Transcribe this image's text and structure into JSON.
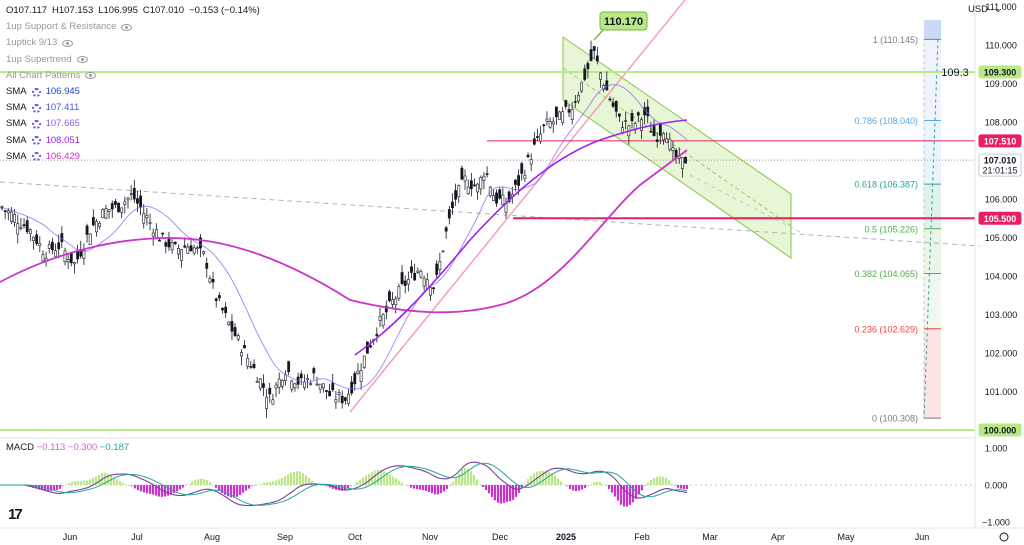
{
  "ohlc": {
    "open": "O107.117",
    "high": "H107.153",
    "low": "L106.995",
    "close": "C107.010",
    "change": "−0.153 (−0.14%)"
  },
  "indicators": [
    {
      "label": "1up Support & Resistance",
      "icon": "eye-off-icon"
    },
    {
      "label": "1uptick 9/13",
      "icon": "eye-off-icon"
    },
    {
      "label": "1up Supertrend",
      "icon": "eye-off-icon"
    },
    {
      "label": "All Chart Patterns",
      "icon": "eye-off-icon"
    }
  ],
  "sma": [
    {
      "label": "SMA",
      "value": "106.945",
      "color": "#1e3fd6"
    },
    {
      "label": "SMA",
      "value": "107.411",
      "color": "#3d58e0"
    },
    {
      "label": "SMA",
      "value": "107.665",
      "color": "#8b5cf6"
    },
    {
      "label": "SMA",
      "value": "108.051",
      "color": "#a020f0"
    },
    {
      "label": "SMA",
      "value": "106.429",
      "color": "#cc33cc"
    }
  ],
  "currency": "USD",
  "price_axis": {
    "ticks": [
      "111.000",
      "110.000",
      "109.000",
      "108.000",
      "107.000",
      "106.000",
      "105.000",
      "104.000",
      "103.000",
      "102.000",
      "101.000"
    ],
    "badges": [
      {
        "label": "109.300",
        "bg": "#b9e986",
        "fg": "#131722"
      },
      {
        "label": "107.510",
        "bg": "#e91e63",
        "fg": "#ffffff"
      },
      {
        "label": "107.010",
        "bg": "#ffffff",
        "fg": "#131722",
        "sub": "21:01:15"
      },
      {
        "label": "105.500",
        "bg": "#e91e63",
        "fg": "#ffffff"
      },
      {
        "label": "100.000",
        "bg": "#b9e986",
        "fg": "#131722"
      }
    ]
  },
  "macd_axis": [
    "1.000",
    "0.000",
    "−1.000"
  ],
  "time_axis": [
    "Jun",
    "Jul",
    "Aug",
    "Sep",
    "Oct",
    "Nov",
    "Dec",
    "2025",
    "Feb",
    "Mar",
    "Apr",
    "May",
    "Jun"
  ],
  "annotations": {
    "peak_callout": "110.170",
    "hline_label": "109.3"
  },
  "macd_legend": {
    "name": "MACD",
    "v1": "−0.113",
    "v2": "−0.300",
    "v3": "−0.187",
    "c1": "#cc66cc",
    "c2": "#cc66cc",
    "c3": "#26a69a"
  },
  "fib_labels": [
    {
      "text": "1 (110.145)",
      "color": "#787b86",
      "level": 110.145
    },
    {
      "text": "0.786 (108.040)",
      "color": "#5aa9e6",
      "level": 108.04
    },
    {
      "text": "0.618 (106.387)",
      "color": "#26a69a",
      "level": 106.387
    },
    {
      "text": "0.5 (105.226)",
      "color": "#4caf50",
      "level": 105.226
    },
    {
      "text": "0.382 (104.065)",
      "color": "#4caf50",
      "level": 104.065
    },
    {
      "text": "0.236 (102.629)",
      "color": "#f44336",
      "level": 102.629
    },
    {
      "text": "0 (100.308)",
      "color": "#787b86",
      "level": 100.308
    }
  ],
  "chart_data": {
    "type": "candlestick",
    "symbol_price_summary": {
      "open": 107.117,
      "high": 107.153,
      "low": 106.995,
      "close": 107.01
    },
    "ylim": [
      100.0,
      111.0
    ],
    "x_labels": [
      "Jun",
      "Jul",
      "Aug",
      "Sep",
      "Oct",
      "Nov",
      "Dec",
      "2025",
      "Feb",
      "Mar",
      "Apr",
      "May",
      "Jun"
    ],
    "series": [
      {
        "name": "price",
        "points": [
          {
            "x": "Jun",
            "y": 105.4
          },
          {
            "x": "Jul",
            "y": 105.9
          },
          {
            "x": "Aug",
            "y": 103.5
          },
          {
            "x": "Sep",
            "y": 101.2
          },
          {
            "x": "Oct",
            "y": 100.9
          },
          {
            "x": "Nov",
            "y": 104.0
          },
          {
            "x": "Dec",
            "y": 106.6
          },
          {
            "x": "2025",
            "y": 108.6
          },
          {
            "x": "Feb",
            "y": 107.9
          },
          {
            "x": "Feb (latest)",
            "y": 107.01
          }
        ]
      }
    ],
    "horizontal_levels": [
      109.3,
      107.51,
      105.5,
      100.0
    ],
    "macd": {
      "ylim": [
        -1.0,
        1.0
      ],
      "values": [
        -0.113,
        -0.3,
        -0.187
      ]
    }
  }
}
